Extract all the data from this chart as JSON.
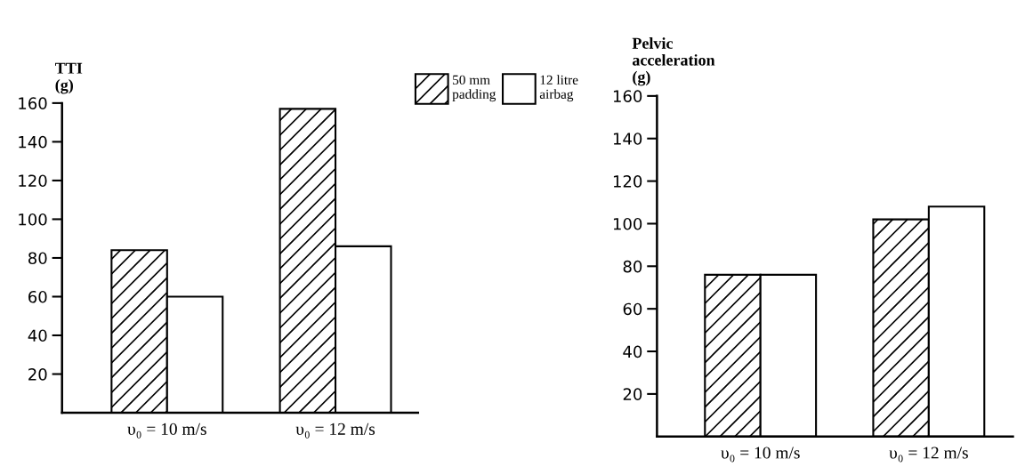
{
  "chart_data": [
    {
      "type": "bar",
      "ylabel": "TTI\n(g)",
      "categories": [
        "υ₀ = 10 m/s",
        "υ₀ = 12 m/s"
      ],
      "ylim": [
        0,
        160
      ],
      "yticks": [
        {
          "value": 20,
          "label": "20"
        },
        40,
        60,
        80,
        100,
        120,
        140,
        160
      ],
      "grid": false,
      "legend": "top right",
      "series": [
        {
          "name": "50 mm\npadding",
          "color": "#000000",
          "values": [
            84,
            157
          ]
        },
        {
          "name": "12 litre\nairbag",
          "color": "#ffffff",
          "values": [
            60,
            86
          ]
        }
      ]
    },
    {
      "type": "bar",
      "ylabel": "Pelvic\nacceleration\n(g)",
      "categories": [
        "υ₀ = 10 m/s",
        "υ₀ = 12 m/s"
      ],
      "ylim": [
        0,
        160
      ],
      "yticks": [
        20,
        40,
        60,
        80,
        100,
        120,
        140,
        160
      ],
      "grid": false,
      "series": [
        {
          "color": "#000000",
          "values": [
            76,
            102
          ]
        },
        {
          "color": "#ffffff",
          "values": [
            76,
            108
          ]
        }
      ]
    }
  ]
}
